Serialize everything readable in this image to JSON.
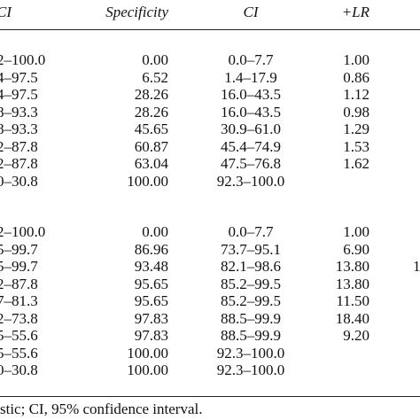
{
  "table": {
    "header": [
      "CI",
      "Specificity",
      "CI",
      "+LR"
    ],
    "groups": [
      {
        "rows": [
          [
            "2–100.0",
            "0.00",
            "0.0–7.7",
            "1.00",
            null
          ],
          [
            "4–97.5",
            "6.52",
            "1.4–17.9",
            "0.86",
            null
          ],
          [
            "4–97.5",
            "28.26",
            "16.0–43.5",
            "1.12",
            null
          ],
          [
            "8–93.3",
            "28.26",
            "16.0–43.5",
            "0.98",
            null
          ],
          [
            "8–93.3",
            "45.65",
            "30.9–61.0",
            "1.29",
            null
          ],
          [
            "2–87.8",
            "60.87",
            "45.4–74.9",
            "1.53",
            null
          ],
          [
            "2–87.8",
            "63.04",
            "47.5–76.8",
            "1.62",
            null
          ],
          [
            "0–30.8",
            "100.00",
            "92.3–100.0",
            null,
            null
          ]
        ]
      },
      {
        "rows": [
          [
            "2–100.0",
            "0.00",
            "0.0–7.7",
            "1.00",
            null
          ],
          [
            "5–99.7",
            "86.96",
            "73.7–95.1",
            "6.90",
            null
          ],
          [
            "5–99.7",
            "93.48",
            "82.1–98.6",
            "13.80",
            "1"
          ],
          [
            "2–87.8",
            "95.65",
            "85.2–99.5",
            "13.80",
            null
          ],
          [
            "7–81.3",
            "95.65",
            "85.2–99.5",
            "11.50",
            null
          ],
          [
            "2–73.8",
            "97.83",
            "88.5–99.9",
            "18.40",
            null
          ],
          [
            "5–55.6",
            "97.83",
            "88.5–99.9",
            "9.20",
            null
          ],
          [
            "5–55.6",
            "100.00",
            "92.3–100.0",
            null,
            null
          ],
          [
            "0–30.8",
            "100.00",
            "92.3–100.0",
            null,
            null
          ]
        ]
      }
    ]
  },
  "footnote": "stic; CI, 95% confidence interval."
}
